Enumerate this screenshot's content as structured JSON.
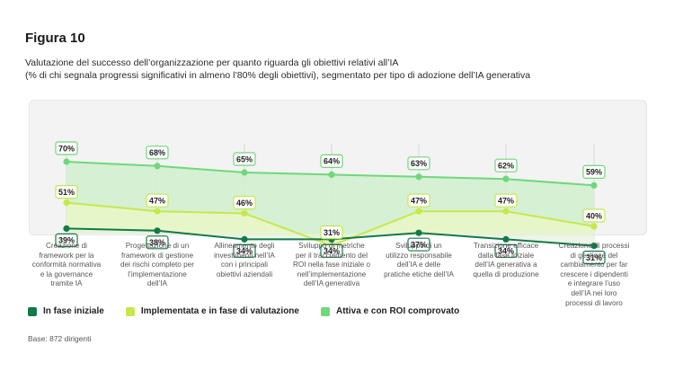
{
  "figure_label": "Figura 10",
  "subtitle_lines": [
    "Valutazione del successo dell’organizzazione per quanto riguarda gli obiettivi relativi all’IA",
    "(% di chi segnala progressi significativi in almeno l’80% degli obiettivi), segmentato per tipo di adozione dell’IA generativa"
  ],
  "base_note": "Base: 872 dirigenti",
  "colors": {
    "in_fase_iniziale": "#137a47",
    "implementata": "#c6e84a",
    "attiva": "#6fd87a",
    "area_attiva": "#cfeecb",
    "area_impl": "#e9f6c8"
  },
  "chart_data": {
    "type": "line",
    "ylim": [
      0,
      100
    ],
    "categories": [
      "Creazione di framework per la conformità normativa e la governance tramite IA",
      "Progettazione di un framework di gestione dei rischi completo per l’implementazione dell’IA",
      "Allineamento degli investimenti nell’IA con i principali obiettivi aziendali",
      "Sviluppo di metriche per il tracciamento del ROI nella fase iniziale o nell’implementazione dell’IA generativa",
      "Sviluppo di un utilizzo responsabile dell’IA e delle pratiche etiche dell’IA",
      "Transizione efficace dalla fase iniziale dell’IA generativa a quella di produzione",
      "Creazione di processi di gestione del cambiamento per far crescere i dipendenti e integrare l’uso dell’IA nei loro processi di lavoro"
    ],
    "category_lines": [
      [
        "Creazione di",
        "framework per la",
        "conformità normativa",
        "e la governance",
        "tramite IA"
      ],
      [
        "Progettazione di un",
        "framework di gestione",
        "dei rischi completo per",
        "l’implementazione",
        "dell’IA"
      ],
      [
        "Allineamento degli",
        "investimenti nell’IA",
        "con i principali",
        "obiettivi aziendali"
      ],
      [
        "Sviluppo di metriche",
        "per il tracciamento del",
        "ROI nella fase iniziale o",
        "nell’implementazione",
        "dell’IA generativa"
      ],
      [
        "Sviluppo di un",
        "utilizzo responsabile",
        "dell’IA e delle",
        "pratiche etiche dell’IA"
      ],
      [
        "Transizione efficace",
        "dalla fase iniziale",
        "dell’IA generativa a",
        "quella di produzione"
      ],
      [
        "Creazione di processi",
        "di gestione del",
        "cambiamento per far",
        "crescere i dipendenti",
        "e integrare l’uso",
        "dell’IA nei loro",
        "processi di lavoro"
      ]
    ],
    "series": [
      {
        "key": "attiva",
        "name": "Attiva e con ROI comprovato",
        "values": [
          70,
          68,
          65,
          64,
          63,
          62,
          59
        ],
        "labels": [
          "70%",
          "68%",
          "65%",
          "64%",
          "63%",
          "62%",
          "59%"
        ]
      },
      {
        "key": "implementata",
        "name": "Implementata e in fase di valutazione",
        "values": [
          51,
          47,
          46,
          31,
          47,
          47,
          40
        ],
        "labels": [
          "51%",
          "47%",
          "46%",
          "31%",
          "47%",
          "47%",
          "40%"
        ]
      },
      {
        "key": "in_fase_iniziale",
        "name": "In fase iniziale",
        "values": [
          39,
          38,
          34,
          34,
          37,
          34,
          31
        ],
        "labels": [
          "39%",
          "38%",
          "34%",
          "34%",
          "37%",
          "34%",
          "31%"
        ]
      }
    ]
  },
  "legend": [
    {
      "key": "in_fase_iniziale",
      "label": "In fase iniziale"
    },
    {
      "key": "implementata",
      "label": "Implementata e in fase di valutazione"
    },
    {
      "key": "attiva",
      "label": "Attiva e con ROI comprovato"
    }
  ]
}
